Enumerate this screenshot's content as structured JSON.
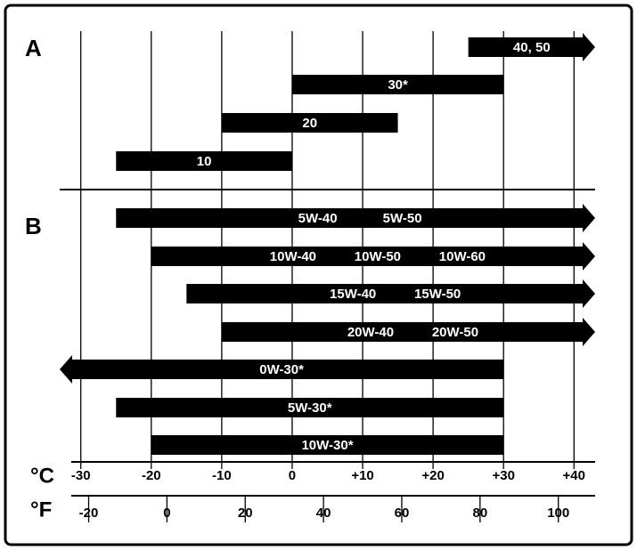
{
  "chart_data": {
    "type": "range-bar",
    "sections": [
      {
        "label": "A",
        "bars": [
          {
            "labels": [
              "40, 50"
            ],
            "from": 25,
            "arrow": "right"
          },
          {
            "labels": [
              "30*"
            ],
            "from": 0,
            "to": 30
          },
          {
            "labels": [
              "20"
            ],
            "from": -10,
            "to": 15
          },
          {
            "labels": [
              "10"
            ],
            "from": -25,
            "to": 0
          }
        ]
      },
      {
        "label": "B",
        "bars": [
          {
            "labels": [
              "5W-40",
              "5W-50"
            ],
            "from": -25,
            "arrow": "right"
          },
          {
            "labels": [
              "10W-40",
              "10W-50",
              "10W-60"
            ],
            "from": -20,
            "arrow": "right"
          },
          {
            "labels": [
              "15W-40",
              "15W-50"
            ],
            "from": -15,
            "arrow": "right"
          },
          {
            "labels": [
              "20W-40",
              "20W-50"
            ],
            "from": -10,
            "arrow": "right"
          },
          {
            "labels": [
              "0W-30*"
            ],
            "to": 30,
            "arrow": "left"
          },
          {
            "labels": [
              "5W-30*"
            ],
            "from": -25,
            "to": 30
          },
          {
            "labels": [
              "10W-30*"
            ],
            "from": -20,
            "to": 30
          }
        ]
      }
    ],
    "x_axis": {
      "unit": "°C",
      "xlim": [
        -33,
        43
      ],
      "xticks": [
        -30,
        -20,
        -10,
        0,
        {
          "value": 10,
          "label": "+10"
        },
        {
          "value": 20,
          "label": "+20"
        },
        {
          "value": 30,
          "label": "+30"
        },
        {
          "value": 40,
          "label": "+40"
        }
      ]
    },
    "x2_axis": {
      "unit": "°F",
      "x2lim": [
        -27.4,
        109.4
      ],
      "x2ticks": [
        -20,
        0,
        20,
        40,
        60,
        80,
        100
      ]
    },
    "grid": true
  }
}
